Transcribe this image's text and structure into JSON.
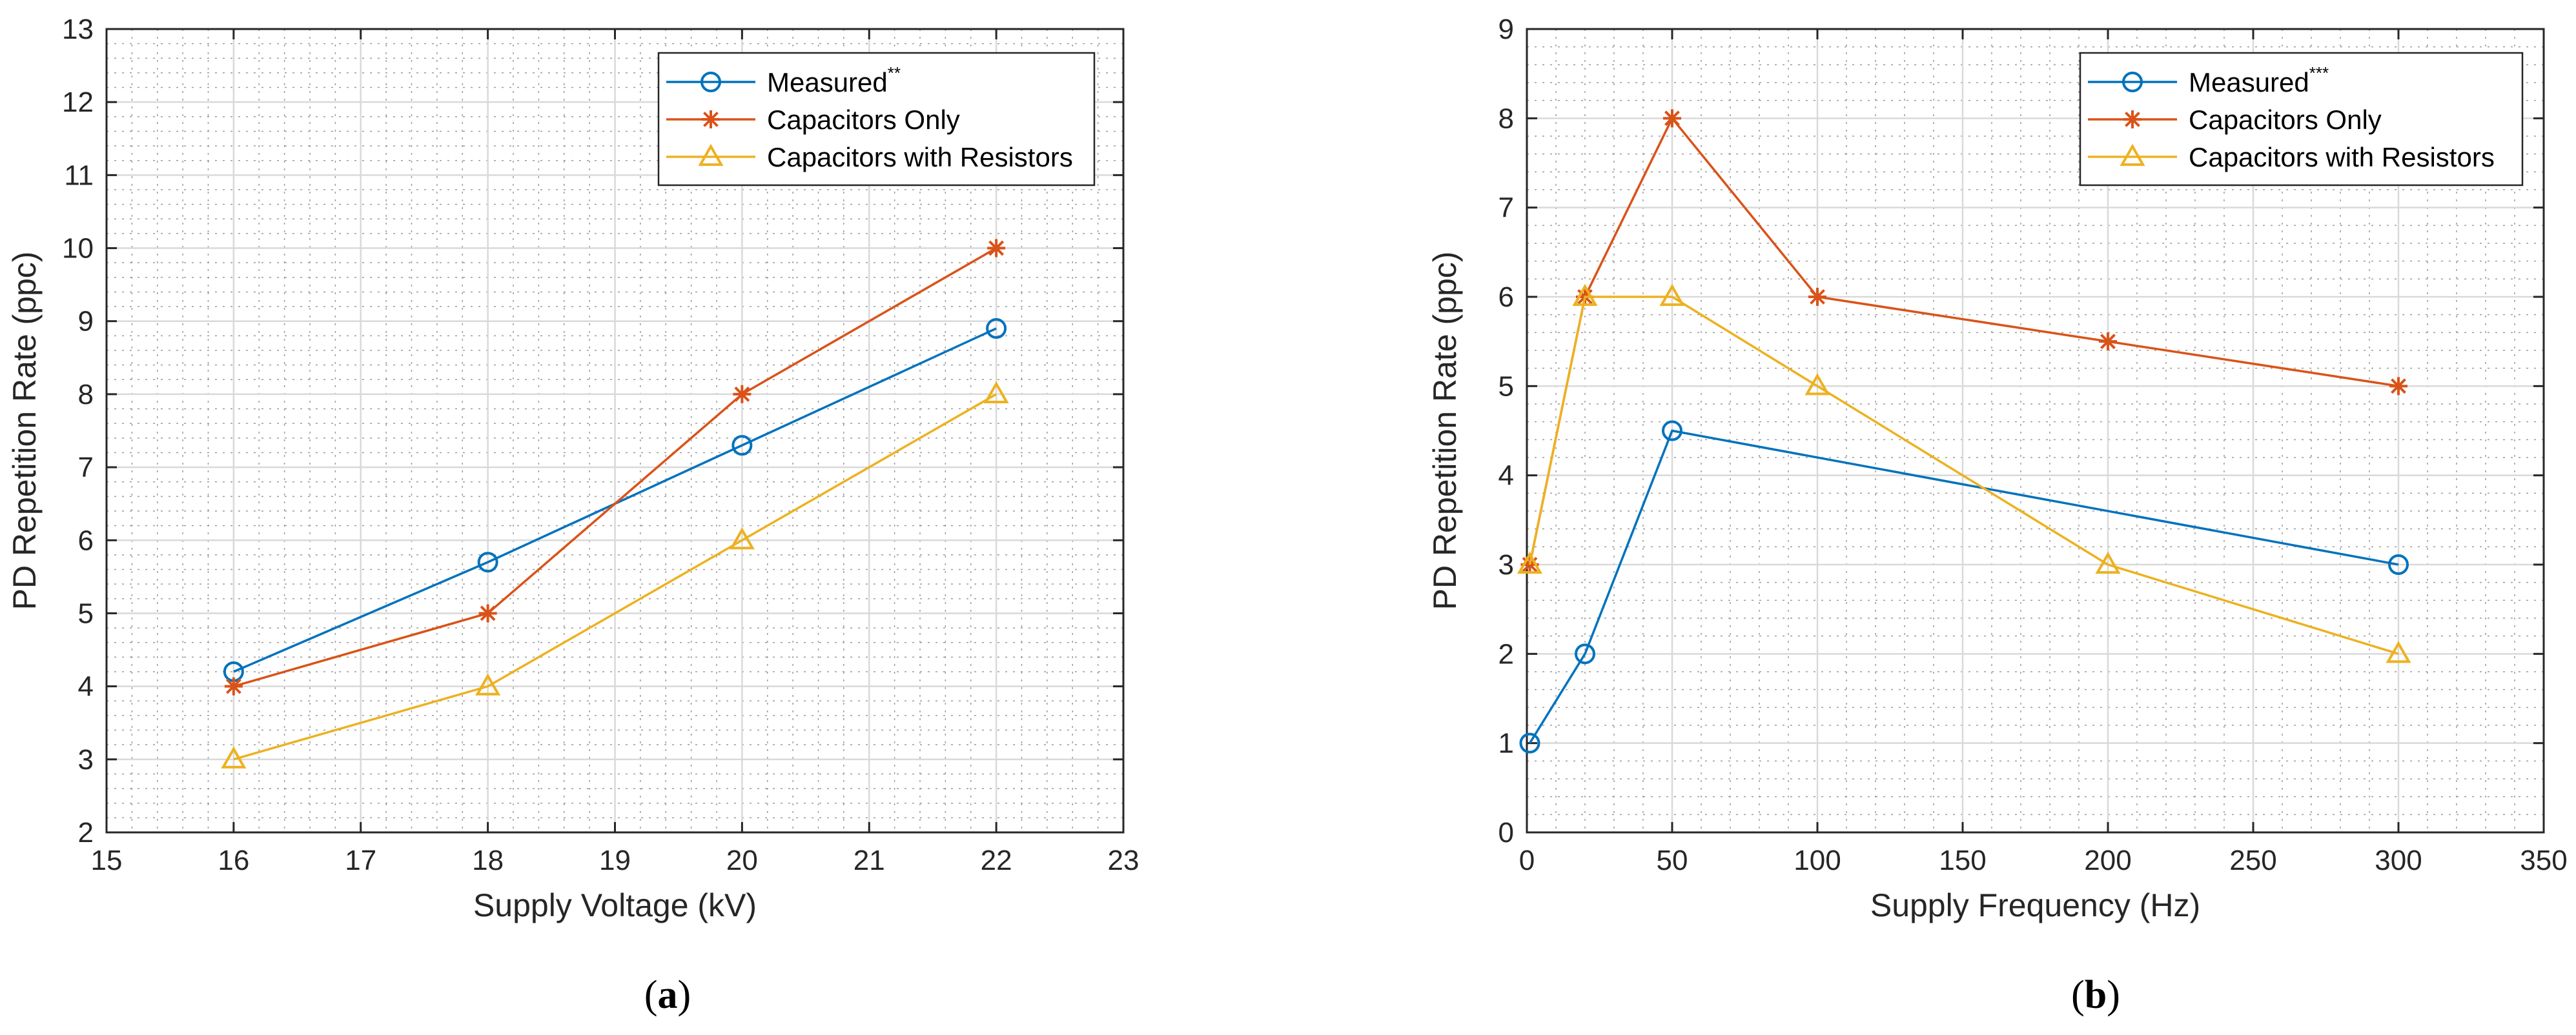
{
  "chart_data": [
    {
      "type": "line",
      "panel_label": {
        "open": "(",
        "letter": "a",
        "close": ")"
      },
      "xlabel": "Supply Voltage (kV)",
      "ylabel": "PD Repetition Rate (ppc)",
      "xlim": [
        15,
        23
      ],
      "ylim": [
        2,
        13
      ],
      "xticks": [
        15,
        16,
        17,
        18,
        19,
        20,
        21,
        22,
        23
      ],
      "yticks": [
        2,
        3,
        4,
        5,
        6,
        7,
        8,
        9,
        10,
        11,
        12,
        13
      ],
      "grid": true,
      "minor_grid": true,
      "legend_position": "top-right",
      "series": [
        {
          "name": "Measured",
          "superscript": "**",
          "color": "#0072BD",
          "marker": "circle",
          "x": [
            16,
            18,
            20,
            22
          ],
          "y": [
            4.2,
            5.7,
            7.3,
            8.9
          ]
        },
        {
          "name": "Capacitors Only",
          "superscript": "",
          "color": "#D95319",
          "marker": "asterisk",
          "x": [
            16,
            18,
            20,
            22
          ],
          "y": [
            4,
            5,
            8,
            10
          ]
        },
        {
          "name": "Capacitors with Resistors",
          "superscript": "",
          "color": "#EDB120",
          "marker": "triangle",
          "x": [
            16,
            18,
            20,
            22
          ],
          "y": [
            3,
            4,
            6,
            8
          ]
        }
      ]
    },
    {
      "type": "line",
      "panel_label": {
        "open": "(",
        "letter": "b",
        "close": ")"
      },
      "xlabel": "Supply Frequency (Hz)",
      "ylabel": "PD Repetition Rate (ppc)",
      "xlim": [
        0,
        350
      ],
      "ylim": [
        0,
        9
      ],
      "xticks": [
        0,
        50,
        100,
        150,
        200,
        250,
        300,
        350
      ],
      "yticks": [
        0,
        1,
        2,
        3,
        4,
        5,
        6,
        7,
        8,
        9
      ],
      "grid": true,
      "minor_grid": true,
      "legend_position": "top-right",
      "series": [
        {
          "name": "Measured",
          "superscript": "***",
          "color": "#0072BD",
          "marker": "circle",
          "x": [
            1,
            20,
            50,
            300
          ],
          "y": [
            1,
            2,
            4.5,
            3
          ]
        },
        {
          "name": "Capacitors Only",
          "superscript": "",
          "color": "#D95319",
          "marker": "asterisk",
          "x": [
            1,
            20,
            50,
            100,
            200,
            300
          ],
          "y": [
            3,
            6,
            8,
            6,
            5.5,
            5
          ]
        },
        {
          "name": "Capacitors with Resistors",
          "superscript": "",
          "color": "#EDB120",
          "marker": "triangle",
          "x": [
            1,
            20,
            50,
            100,
            200,
            300
          ],
          "y": [
            3,
            6,
            6,
            5,
            3,
            2
          ]
        }
      ]
    }
  ]
}
